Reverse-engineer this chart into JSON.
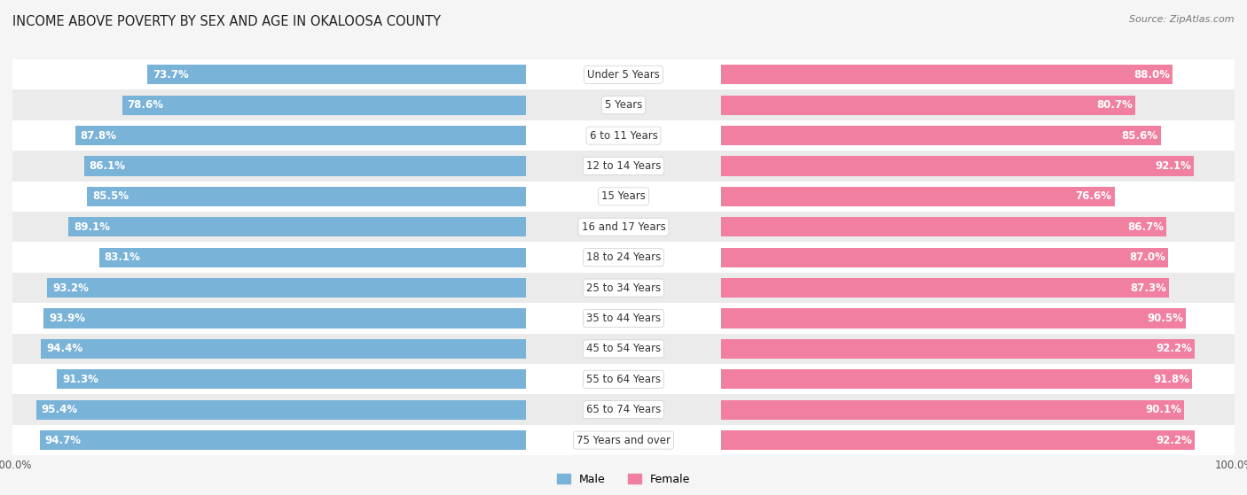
{
  "title": "INCOME ABOVE POVERTY BY SEX AND AGE IN OKALOOSA COUNTY",
  "source": "Source: ZipAtlas.com",
  "categories": [
    "Under 5 Years",
    "5 Years",
    "6 to 11 Years",
    "12 to 14 Years",
    "15 Years",
    "16 and 17 Years",
    "18 to 24 Years",
    "25 to 34 Years",
    "35 to 44 Years",
    "45 to 54 Years",
    "55 to 64 Years",
    "65 to 74 Years",
    "75 Years and over"
  ],
  "male_values": [
    73.7,
    78.6,
    87.8,
    86.1,
    85.5,
    89.1,
    83.1,
    93.2,
    93.9,
    94.4,
    91.3,
    95.4,
    94.7
  ],
  "female_values": [
    88.0,
    80.7,
    85.6,
    92.1,
    76.6,
    86.7,
    87.0,
    87.3,
    90.5,
    92.2,
    91.8,
    90.1,
    92.2
  ],
  "male_color": "#7ab3d8",
  "female_color": "#f07fa0",
  "male_color_light": "#b8d4ea",
  "female_color_light": "#f9c0d0",
  "male_label": "Male",
  "female_label": "Female",
  "axis_max": 100.0,
  "background_color": "#f5f5f5",
  "row_colors": [
    "#ffffff",
    "#ebebeb"
  ],
  "title_fontsize": 10.5,
  "label_fontsize": 8.5,
  "bar_value_fontsize": 8.5
}
